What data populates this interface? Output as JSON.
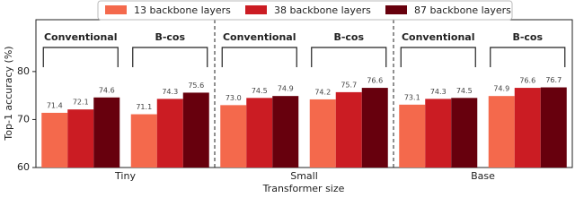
{
  "chart_data": {
    "type": "grouped_bar",
    "xlabel": "Transformer size",
    "ylabel": "Top-1 accuracy (%)",
    "groups": [
      "Tiny",
      "Small",
      "Base"
    ],
    "categories": [
      "Conventional",
      "B-cos",
      "Conventional",
      "B-cos",
      "Conventional",
      "B-cos"
    ],
    "series": [
      {
        "name": "13 backbone layers",
        "color": "#f4694c",
        "values": [
          71.4,
          71.1,
          73.0,
          74.2,
          73.1,
          74.9
        ],
        "value_labels": [
          "71.4",
          "71.1",
          "73.0",
          "74.2",
          "73.1",
          "74.9"
        ]
      },
      {
        "name": "38 backbone layers",
        "color": "#cb1c23",
        "values": [
          72.1,
          74.3,
          74.5,
          75.7,
          74.3,
          76.6
        ],
        "value_labels": [
          "72.1",
          "74.3",
          "74.5",
          "75.7",
          "74.3",
          "76.6"
        ]
      },
      {
        "name": "87 backbone layers",
        "color": "#67000d",
        "values": [
          74.6,
          75.6,
          74.9,
          76.6,
          74.5,
          76.7
        ],
        "value_labels": [
          "74.6",
          "75.6",
          "74.9",
          "76.6",
          "74.5",
          "76.7"
        ]
      }
    ],
    "ylim": [
      60,
      90.8
    ],
    "yticks": [
      60,
      70,
      80
    ],
    "grid": false,
    "legend": "top"
  }
}
